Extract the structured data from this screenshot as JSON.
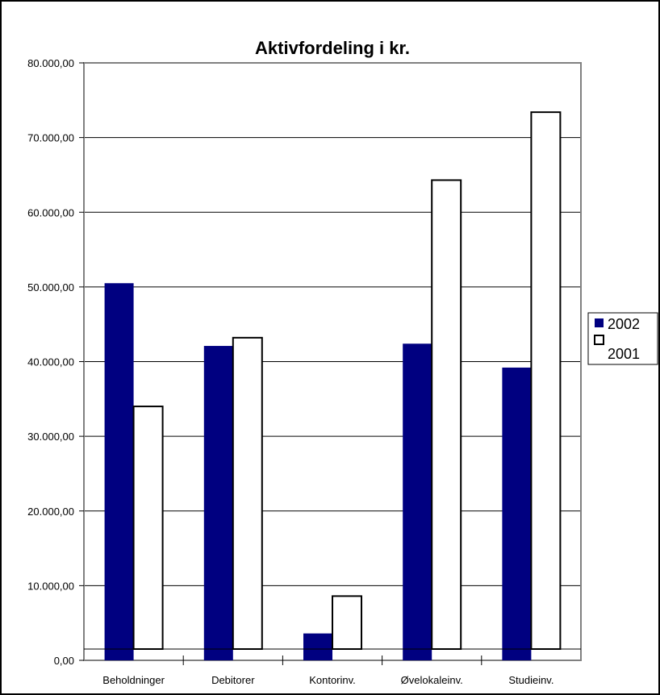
{
  "chart_data": {
    "type": "bar",
    "title": "Aktivfordeling i kr.",
    "xlabel": "",
    "ylabel": "",
    "categories": [
      "Beholdninger",
      "Debitorer",
      "Kontorinv.",
      "Øvelokaleinv.",
      "Studieinv."
    ],
    "series": [
      {
        "name": "2002",
        "values": [
          50500,
          42100,
          3600,
          42400,
          39200
        ],
        "color": "#000080"
      },
      {
        "name": "2001",
        "values": [
          34000,
          43200,
          8600,
          64300,
          73400
        ],
        "color": "#ffffff"
      }
    ],
    "ylim": [
      0,
      80000
    ],
    "yticks": [
      0,
      10000,
      20000,
      30000,
      40000,
      50000,
      60000,
      70000,
      80000
    ],
    "ytick_labels": [
      "0,00",
      "10.000,00",
      "20.000,00",
      "30.000,00",
      "40.000,00",
      "50.000,00",
      "60.000,00",
      "70.000,00",
      "80.000,00"
    ],
    "grid": true,
    "legend_position": "right",
    "colors": {
      "plot_border": "#808080",
      "bar_outline": "#000000",
      "gridline": "#000000"
    }
  }
}
